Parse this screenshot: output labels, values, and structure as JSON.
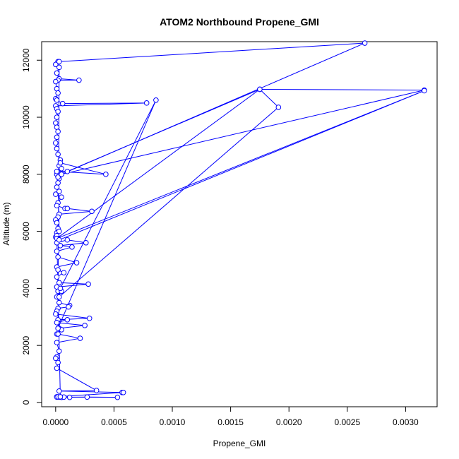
{
  "chart_data": {
    "type": "line",
    "title": "ATOM2 Northbound Propene_GMI",
    "xlabel": "Propene_GMI",
    "ylabel": "Altitude (m)",
    "xlim": [
      -0.00012,
      0.00327
    ],
    "ylim": [
      -150,
      12650
    ],
    "x_ticks": [
      0.0,
      0.0005,
      0.001,
      0.0015,
      0.002,
      0.0025,
      0.003
    ],
    "x_tick_labels": [
      "0.0000",
      "0.0005",
      "0.0010",
      "0.0015",
      "0.0020",
      "0.0025",
      "0.0030"
    ],
    "y_ticks": [
      0,
      2000,
      4000,
      6000,
      8000,
      10000,
      12000
    ],
    "y_tick_labels": [
      "0",
      "2000",
      "4000",
      "6000",
      "8000",
      "10000",
      "12000"
    ],
    "grid": false,
    "marker": "open-circle",
    "series": [
      {
        "color": "#0000ff",
        "points": [
          [
            2e-05,
            11950
          ],
          [
            0.0,
            11850
          ],
          [
            3e-05,
            11750
          ],
          [
            1e-05,
            11550
          ],
          [
            3e-05,
            11350
          ],
          [
            0.0002,
            11300
          ],
          [
            2e-05,
            11300
          ],
          [
            0.0,
            11250
          ],
          [
            1e-05,
            11000
          ],
          [
            2e-05,
            10850
          ],
          [
            0.0,
            10650
          ],
          [
            1e-05,
            10600
          ],
          [
            6e-05,
            10480
          ],
          [
            0.00078,
            10500
          ],
          [
            0.0,
            10400
          ],
          [
            1e-05,
            10300
          ],
          [
            2e-05,
            10200
          ],
          [
            1e-05,
            10000
          ],
          [
            0.0,
            9800
          ],
          [
            1e-05,
            9650
          ],
          [
            2e-05,
            9500
          ],
          [
            1e-05,
            9300
          ],
          [
            0.0,
            9100
          ],
          [
            1e-05,
            8900
          ],
          [
            2e-05,
            8700
          ],
          [
            4e-05,
            8500
          ],
          [
            3e-05,
            8300
          ],
          [
            5e-05,
            8200
          ],
          [
            1e-05,
            8000
          ],
          [
            3e-05,
            7850
          ],
          [
            2e-05,
            7700
          ],
          [
            1e-05,
            7550
          ],
          [
            3e-05,
            7400
          ],
          [
            0.0,
            7300
          ],
          [
            5e-05,
            7200
          ],
          [
            2e-05,
            7000
          ],
          [
            1e-05,
            6900
          ],
          [
            8e-05,
            6800
          ],
          [
            0.0001,
            6800
          ],
          [
            0.00031,
            6700
          ],
          [
            3e-05,
            6600
          ],
          [
            2e-05,
            6500
          ],
          [
            0.0,
            6400
          ],
          [
            1e-05,
            6300
          ],
          [
            2e-05,
            6100
          ],
          [
            1e-05,
            5950
          ],
          [
            0.0,
            5800
          ],
          [
            2e-05,
            5750
          ],
          [
            1e-05,
            5600
          ],
          [
            0.0001,
            5700
          ],
          [
            0.00026,
            5600
          ],
          [
            4e-05,
            5500
          ],
          [
            0.00014,
            5450
          ],
          [
            1e-05,
            5300
          ],
          [
            2e-05,
            5100
          ],
          [
            0.00018,
            4900
          ],
          [
            1e-05,
            4750
          ],
          [
            2e-05,
            4650
          ],
          [
            7e-05,
            4550
          ],
          [
            1e-05,
            4400
          ],
          [
            3e-05,
            4200
          ],
          [
            0.00028,
            4150
          ],
          [
            1e-05,
            4050
          ],
          [
            2e-05,
            3900
          ],
          [
            5e-05,
            3900
          ],
          [
            1e-05,
            3700
          ],
          [
            3e-05,
            3500
          ],
          [
            0.00012,
            3400
          ],
          [
            0.00011,
            3350
          ],
          [
            2e-05,
            3300
          ],
          [
            1e-05,
            3200
          ],
          [
            0.0,
            3100
          ],
          [
            0.00029,
            2950
          ],
          [
            2e-05,
            2900
          ],
          [
            0.0001,
            2900
          ],
          [
            1e-05,
            2800
          ],
          [
            0.00025,
            2700
          ],
          [
            3e-05,
            2600
          ],
          [
            5e-05,
            2550
          ],
          [
            1e-05,
            2400
          ],
          [
            2e-05,
            2400
          ],
          [
            0.00021,
            2250
          ],
          [
            1e-05,
            2100
          ],
          [
            3e-05,
            1800
          ],
          [
            1e-05,
            1600
          ],
          [
            0.0,
            1550
          ],
          [
            2e-05,
            1400
          ],
          [
            1e-05,
            1200
          ],
          [
            0.00035,
            420
          ],
          [
            3e-05,
            400
          ],
          [
            0.00057,
            350
          ],
          [
            0.00058,
            350
          ],
          [
            1e-05,
            200
          ],
          [
            3e-05,
            190
          ],
          [
            5e-05,
            180
          ],
          [
            0.00012,
            180
          ],
          [
            0.00027,
            190
          ],
          [
            0.00053,
            180
          ],
          [
            1e-05,
            190
          ],
          [
            7e-05,
            190
          ],
          [
            2e-05,
            200
          ],
          [
            4e-05,
            200
          ],
          [
            1e-05,
            5850
          ],
          [
            2e-05,
            5750
          ],
          [
            3e-05,
            6000
          ],
          [
            2e-05,
            7900
          ],
          [
            4e-05,
            8400
          ],
          [
            0.00043,
            8000
          ],
          [
            1e-05,
            8100
          ],
          [
            0.0001,
            8100
          ],
          [
            0.00175,
            10980
          ],
          [
            0.00191,
            10350
          ],
          [
            3e-05,
            3700
          ],
          [
            4e-05,
            4000
          ],
          [
            0.00086,
            10600
          ],
          [
            2e-05,
            2600
          ],
          [
            3e-05,
            11950
          ],
          [
            0.00265,
            12600
          ],
          [
            5e-05,
            8000
          ],
          [
            0.00316,
            10950
          ],
          [
            0.00175,
            10980
          ],
          [
            1e-05,
            5750
          ],
          [
            0.00316,
            10930
          ],
          [
            3e-05,
            5700
          ]
        ]
      }
    ]
  }
}
